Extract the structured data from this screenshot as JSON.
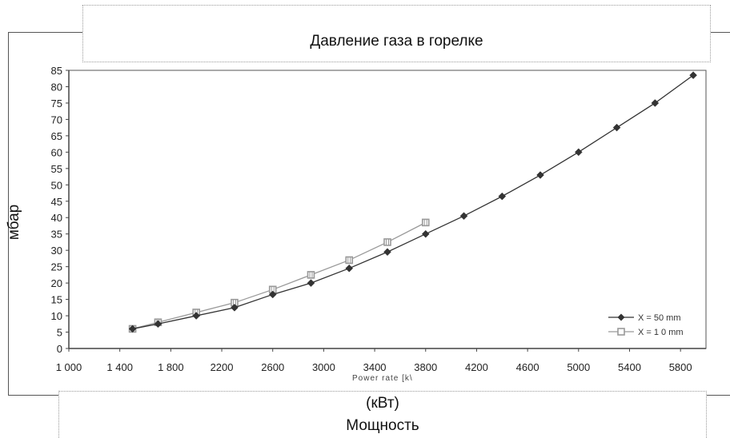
{
  "chart_data": {
    "type": "line",
    "title": "Давление газа в горелке",
    "ylabel": "мбар",
    "xlabel_small": "Power rate [k\\",
    "xlabel_unit": "(кВт)",
    "xlabel_caption": "Мощность",
    "xlim": [
      1000,
      6000
    ],
    "ylim": [
      0,
      85
    ],
    "x_ticks": [
      "1 000",
      "1 400",
      "1 800",
      "2200",
      "2600",
      "3000",
      "3400",
      "3800",
      "4200",
      "4600",
      "5000",
      "5400",
      "5800"
    ],
    "y_ticks": [
      "0",
      "5",
      "10",
      "15",
      "20",
      "25",
      "30",
      "35",
      "40",
      "45",
      "50",
      "55",
      "60",
      "65",
      "70",
      "75",
      "80",
      "85"
    ],
    "legend_position": "bottom-right",
    "grid": false,
    "series": [
      {
        "name": "X = 50 mm",
        "color": "#333333",
        "marker": "diamond",
        "x": [
          1500,
          1700,
          2000,
          2300,
          2600,
          2900,
          3200,
          3500,
          3800,
          4100,
          4400,
          4700,
          5000,
          5300,
          5600,
          5900
        ],
        "y": [
          6,
          7.5,
          10,
          12.5,
          16.5,
          20,
          24.5,
          29.5,
          35,
          40.5,
          46.5,
          53,
          60,
          67.5,
          75,
          83.5
        ]
      },
      {
        "name": "X = 1 0 mm",
        "color": "#999999",
        "marker": "square",
        "x": [
          1500,
          1700,
          2000,
          2300,
          2600,
          2900,
          3200,
          3500,
          3800
        ],
        "y": [
          6,
          8,
          11,
          14,
          18,
          22.5,
          27,
          32.5,
          38.5
        ]
      }
    ]
  }
}
